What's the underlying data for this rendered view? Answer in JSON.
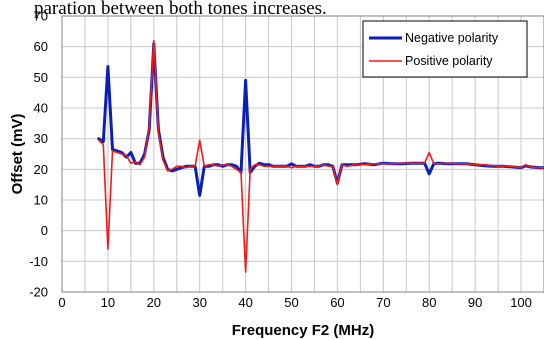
{
  "caption_fragment": "paration between both tones increases.",
  "colors": {
    "negative": "#0a1fb8",
    "positive": "#ee1c1c",
    "grid": "#c8c8c8"
  },
  "chart_data": {
    "type": "line",
    "title": "",
    "xlabel": "Frequency F2 (MHz)",
    "ylabel": "Offset (mV)",
    "xlim": [
      0,
      105
    ],
    "ylim": [
      -20,
      70
    ],
    "xticks": [
      0,
      10,
      20,
      30,
      40,
      50,
      60,
      70,
      80,
      90,
      100
    ],
    "yticks": [
      -20,
      -10,
      0,
      10,
      20,
      30,
      40,
      50,
      60,
      70
    ],
    "grid": true,
    "legend_position": "top-right",
    "series": [
      {
        "name": "Negative polarity",
        "color": "#0a1fb8",
        "points": [
          [
            8,
            30
          ],
          [
            9,
            29
          ],
          [
            10,
            53.5
          ],
          [
            11,
            26.5
          ],
          [
            12,
            26
          ],
          [
            13,
            25.5
          ],
          [
            14,
            24
          ],
          [
            15,
            25.5
          ],
          [
            16,
            22
          ],
          [
            17,
            22
          ],
          [
            18,
            25
          ],
          [
            19,
            33
          ],
          [
            20,
            61
          ],
          [
            21,
            33
          ],
          [
            22,
            24
          ],
          [
            23,
            20
          ],
          [
            24,
            19.5
          ],
          [
            25,
            20
          ],
          [
            26,
            20.5
          ],
          [
            27,
            21
          ],
          [
            28,
            21
          ],
          [
            29,
            21
          ],
          [
            30,
            11.5
          ],
          [
            31,
            21
          ],
          [
            32,
            21
          ],
          [
            33,
            21.5
          ],
          [
            34,
            21.5
          ],
          [
            35,
            21
          ],
          [
            36,
            21.5
          ],
          [
            37,
            21.5
          ],
          [
            38,
            21
          ],
          [
            39,
            19
          ],
          [
            40,
            49
          ],
          [
            41,
            19
          ],
          [
            42,
            21
          ],
          [
            43,
            22
          ],
          [
            44,
            21.5
          ],
          [
            45,
            21.5
          ],
          [
            46,
            21
          ],
          [
            47,
            21
          ],
          [
            48,
            21
          ],
          [
            49,
            21
          ],
          [
            50,
            21.8
          ],
          [
            51,
            21
          ],
          [
            52,
            21
          ],
          [
            53,
            21
          ],
          [
            54,
            21.5
          ],
          [
            55,
            21
          ],
          [
            56,
            21
          ],
          [
            57,
            21.5
          ],
          [
            58,
            21.5
          ],
          [
            59,
            21
          ],
          [
            60,
            15.5
          ],
          [
            61,
            21.5
          ],
          [
            62,
            21.5
          ],
          [
            64,
            21.5
          ],
          [
            66,
            21.8
          ],
          [
            68,
            21.5
          ],
          [
            70,
            22
          ],
          [
            72,
            21.8
          ],
          [
            74,
            21.8
          ],
          [
            76,
            22
          ],
          [
            78,
            22
          ],
          [
            79,
            22
          ],
          [
            80,
            18.5
          ],
          [
            81,
            21.8
          ],
          [
            82,
            22
          ],
          [
            84,
            21.8
          ],
          [
            86,
            21.8
          ],
          [
            88,
            21.8
          ],
          [
            90,
            21.5
          ],
          [
            92,
            21.2
          ],
          [
            94,
            21
          ],
          [
            96,
            21
          ],
          [
            98,
            20.8
          ],
          [
            100,
            20.5
          ],
          [
            101,
            21.2
          ],
          [
            102,
            20.8
          ],
          [
            104,
            20.5
          ],
          [
            105,
            20.5
          ]
        ]
      },
      {
        "name": "Positive polarity",
        "color": "#ee1c1c",
        "points": [
          [
            8,
            29.5
          ],
          [
            9,
            28
          ],
          [
            10,
            -6
          ],
          [
            11,
            26
          ],
          [
            12,
            25.5
          ],
          [
            13,
            25
          ],
          [
            14,
            24.5
          ],
          [
            15,
            22
          ],
          [
            16,
            22.5
          ],
          [
            17,
            21.5
          ],
          [
            18,
            24
          ],
          [
            19,
            34
          ],
          [
            20,
            62
          ],
          [
            21,
            32
          ],
          [
            22,
            23
          ],
          [
            23,
            19.5
          ],
          [
            24,
            20
          ],
          [
            25,
            21
          ],
          [
            26,
            21
          ],
          [
            27,
            20.5
          ],
          [
            28,
            21
          ],
          [
            29,
            21
          ],
          [
            30,
            29.5
          ],
          [
            31,
            21
          ],
          [
            32,
            21.5
          ],
          [
            33,
            21.5
          ],
          [
            34,
            21
          ],
          [
            35,
            21.5
          ],
          [
            36,
            21.5
          ],
          [
            37,
            21
          ],
          [
            38,
            20
          ],
          [
            39,
            19
          ],
          [
            40,
            -13.5
          ],
          [
            41,
            20
          ],
          [
            42,
            21.5
          ],
          [
            43,
            21.5
          ],
          [
            44,
            21
          ],
          [
            45,
            21
          ],
          [
            46,
            21
          ],
          [
            47,
            21
          ],
          [
            48,
            21
          ],
          [
            49,
            21
          ],
          [
            50,
            20.5
          ],
          [
            51,
            21
          ],
          [
            52,
            21
          ],
          [
            53,
            21
          ],
          [
            54,
            21
          ],
          [
            55,
            21
          ],
          [
            56,
            21
          ],
          [
            57,
            21.5
          ],
          [
            58,
            21
          ],
          [
            59,
            21
          ],
          [
            60,
            15
          ],
          [
            61,
            21.5
          ],
          [
            62,
            21
          ],
          [
            64,
            21.5
          ],
          [
            66,
            21.5
          ],
          [
            68,
            21.8
          ],
          [
            70,
            21.8
          ],
          [
            72,
            21.8
          ],
          [
            74,
            22
          ],
          [
            76,
            22
          ],
          [
            78,
            22
          ],
          [
            79,
            22
          ],
          [
            80,
            25.5
          ],
          [
            81,
            21.8
          ],
          [
            82,
            21.8
          ],
          [
            84,
            22
          ],
          [
            86,
            21.8
          ],
          [
            88,
            21.8
          ],
          [
            90,
            21.5
          ],
          [
            92,
            21.5
          ],
          [
            94,
            21.2
          ],
          [
            96,
            21
          ],
          [
            98,
            21
          ],
          [
            100,
            20.5
          ],
          [
            101,
            21.5
          ],
          [
            102,
            20.8
          ],
          [
            104,
            20.5
          ],
          [
            105,
            20.5
          ]
        ]
      }
    ]
  }
}
